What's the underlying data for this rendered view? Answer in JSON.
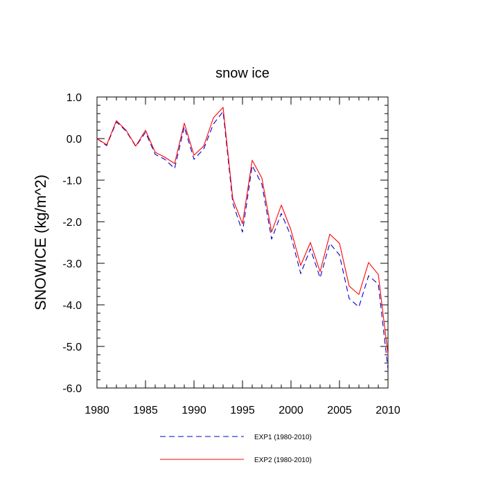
{
  "chart_data": {
    "type": "line",
    "title": "snow ice",
    "ylabel": "SNOWICE  (kg/m^2)",
    "xlabel": "",
    "xlim": [
      1980,
      2010
    ],
    "ylim": [
      -6.0,
      1.0
    ],
    "xticks": [
      1980,
      1985,
      1990,
      1995,
      2000,
      2005,
      2010
    ],
    "xtick_labels": [
      "1980",
      "1985",
      "1990",
      "1995",
      "2000",
      "2005",
      "2010"
    ],
    "yticks": [
      1.0,
      0.0,
      -1.0,
      -2.0,
      -3.0,
      -4.0,
      -5.0,
      -6.0
    ],
    "ytick_labels": [
      "1.0",
      "0.0",
      "-1.0",
      "-2.0",
      "-3.0",
      "-4.0",
      "-5.0",
      "-6.0"
    ],
    "grid": false,
    "legend_position": "bottom",
    "x": [
      1980,
      1981,
      1982,
      1983,
      1984,
      1985,
      1986,
      1987,
      1988,
      1989,
      1990,
      1991,
      1992,
      1993,
      1994,
      1995,
      1996,
      1997,
      1998,
      1999,
      2000,
      2001,
      2002,
      2003,
      2004,
      2005,
      2006,
      2007,
      2008,
      2009,
      2010
    ],
    "series": [
      {
        "name": "EXP1 (1980-2010)",
        "color": "#0000cc",
        "dash": "dashed",
        "values": [
          0.0,
          -0.17,
          0.4,
          0.18,
          -0.19,
          0.15,
          -0.38,
          -0.5,
          -0.72,
          0.28,
          -0.5,
          -0.25,
          0.35,
          0.65,
          -1.55,
          -2.25,
          -0.65,
          -1.1,
          -2.42,
          -1.8,
          -2.35,
          -3.25,
          -2.65,
          -3.35,
          -2.52,
          -2.8,
          -3.85,
          -4.05,
          -3.3,
          -3.5,
          -5.55
        ]
      },
      {
        "name": "EXP2 (1980-2010)",
        "color": "#ff0000",
        "dash": "solid",
        "values": [
          0.0,
          -0.15,
          0.43,
          0.2,
          -0.18,
          0.2,
          -0.33,
          -0.45,
          -0.6,
          0.37,
          -0.4,
          -0.18,
          0.5,
          0.75,
          -1.45,
          -2.05,
          -0.52,
          -0.95,
          -2.25,
          -1.6,
          -2.2,
          -3.05,
          -2.5,
          -3.2,
          -2.3,
          -2.52,
          -3.55,
          -3.75,
          -2.98,
          -3.27,
          -5.2
        ]
      }
    ]
  }
}
